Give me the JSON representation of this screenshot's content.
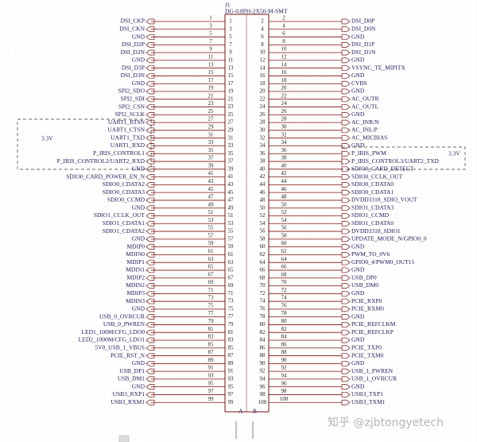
{
  "designator": "J1",
  "part": "DG-0.8PH-2X50-M-SMT",
  "left_net": "3.3V",
  "right_net": "3.3V",
  "unit_a": "A",
  "unit_b": "B",
  "watermark": "知乎 @zjbtongyetech",
  "rows": [
    {
      "left_pin": 1,
      "left": "DSI_CKP",
      "right_pin": 2,
      "right": "DSI_D0P"
    },
    {
      "left_pin": 3,
      "left": "DSI_CKN",
      "right_pin": 4,
      "right": "DSI_D0N"
    },
    {
      "left_pin": 5,
      "left": "GND",
      "right_pin": 6,
      "right": "GND"
    },
    {
      "left_pin": 7,
      "left": "DSI_D2P",
      "right_pin": 8,
      "right": "DSI_D1P"
    },
    {
      "left_pin": 9,
      "left": "DSI_D2N",
      "right_pin": 10,
      "right": "DSI_D1N"
    },
    {
      "left_pin": 11,
      "left": "GND",
      "right_pin": 12,
      "right": "GND"
    },
    {
      "left_pin": 13,
      "left": "DSI_D3P",
      "right_pin": 14,
      "right": "VSYNC_TE_MIPITX"
    },
    {
      "left_pin": 15,
      "left": "DSI_D3N",
      "right_pin": 16,
      "right": "GND"
    },
    {
      "left_pin": 17,
      "left": "GND",
      "right_pin": 18,
      "right": "CVBS"
    },
    {
      "left_pin": 19,
      "left": "SPI2_SDO",
      "right_pin": 20,
      "right": "GND"
    },
    {
      "left_pin": 21,
      "left": "SPI2_SDI",
      "right_pin": 22,
      "right": "AC_OUTR"
    },
    {
      "left_pin": 23,
      "left": "SPI2_CSN",
      "right_pin": 24,
      "right": "AC_OUTL"
    },
    {
      "left_pin": 25,
      "left": "SPI2_SCLK",
      "right_pin": 26,
      "right": "GND"
    },
    {
      "left_pin": 27,
      "left": "UART1_RTSN",
      "right_pin": 28,
      "right": "AC_INR/N"
    },
    {
      "left_pin": 29,
      "left": "UART1_CTSN",
      "right_pin": 30,
      "right": "AC_INL/P"
    },
    {
      "left_pin": 31,
      "left": "UART1_TXD",
      "right_pin": 32,
      "right": "AC_MICBIAS"
    },
    {
      "left_pin": 33,
      "left": "UART1_RXD",
      "right_pin": 34,
      "right": "GND"
    },
    {
      "left_pin": 35,
      "left": "P_IRIS_CONTROL1",
      "right_pin": 36,
      "right": "P_IRIS_PWM"
    },
    {
      "left_pin": 37,
      "left": "P_IRIS_CONTROL2/UART2_RXD",
      "right_pin": 38,
      "right": "P_IRIS_CONTROL3/UART2_TXD"
    },
    {
      "left_pin": 39,
      "left": "GND",
      "right_pin": 40,
      "right": "SDIO0_CARD_DETECT"
    },
    {
      "left_pin": 41,
      "left": "SDIO0_CARD_POWER_EN_N",
      "right_pin": 42,
      "right": "SDIO0_CCLK_OUT"
    },
    {
      "left_pin": 43,
      "left": "SDIO0_CDATA2",
      "right_pin": 44,
      "right": "SDIO0_CDATA0"
    },
    {
      "left_pin": 45,
      "left": "SDIO0_CDATA3",
      "right_pin": 46,
      "right": "SDIO0_CDATA1"
    },
    {
      "left_pin": 47,
      "left": "SDIO0_CCMD",
      "right_pin": 48,
      "right": "DVDD3318_SDIO_VOUT"
    },
    {
      "left_pin": 49,
      "left": "GND",
      "right_pin": 50,
      "right": "SDIO1_CDATA3"
    },
    {
      "left_pin": 51,
      "left": "SDIO1_CCLK_OUT",
      "right_pin": 52,
      "right": "SDIO1_CCMD"
    },
    {
      "left_pin": 53,
      "left": "SDIO1_CDATA1",
      "right_pin": 54,
      "right": "SDIO1_CDATA0"
    },
    {
      "left_pin": 55,
      "left": "SDIO1_CDATA2",
      "right_pin": 56,
      "right": "DVDD3318_SDIO1"
    },
    {
      "left_pin": 57,
      "left": "GND",
      "right_pin": 58,
      "right": "UPDATE_MODE_N/GPIO0_0"
    },
    {
      "left_pin": 59,
      "left": "MDIP0",
      "right_pin": 60,
      "right": "GND"
    },
    {
      "left_pin": 61,
      "left": "MDIN0",
      "right_pin": 62,
      "right": "PWM_TO_0V6"
    },
    {
      "left_pin": 63,
      "left": "MDIP1",
      "right_pin": 64,
      "right": "GPIO0_4/PWM0_OUT15"
    },
    {
      "left_pin": 65,
      "left": "MDIN1",
      "right_pin": 66,
      "right": "GND"
    },
    {
      "left_pin": 67,
      "left": "MDIP2",
      "right_pin": 68,
      "right": "USB_DP0"
    },
    {
      "left_pin": 69,
      "left": "MDIN2",
      "right_pin": 70,
      "right": "USB_DM0"
    },
    {
      "left_pin": 71,
      "left": "MDIP3",
      "right_pin": 72,
      "right": "GND"
    },
    {
      "left_pin": 73,
      "left": "MDIN3",
      "right_pin": 74,
      "right": "PCIE_RXP0"
    },
    {
      "left_pin": 75,
      "left": "GND",
      "right_pin": 76,
      "right": "PCIE_RXM0"
    },
    {
      "left_pin": 77,
      "left": "USB_0_OVRCUR",
      "right_pin": 78,
      "right": "GND"
    },
    {
      "left_pin": 79,
      "left": "USB_0_PWREN",
      "right_pin": 80,
      "right": "PCIE_REFCLKM"
    },
    {
      "left_pin": 81,
      "left": "LED1_100M/CFG_LDO0",
      "right_pin": 82,
      "right": "PCIE_REFCLKP"
    },
    {
      "left_pin": 83,
      "left": "LED2_1000M/CFG_LDO1",
      "right_pin": 84,
      "right": "GND"
    },
    {
      "left_pin": 85,
      "left": "5V0_USB_1_VBUS",
      "right_pin": 86,
      "right": "PCIE_TXP0"
    },
    {
      "left_pin": 87,
      "left": "PCIE_RST_N",
      "right_pin": 88,
      "right": "PCIE_TXM0"
    },
    {
      "left_pin": 89,
      "left": "GND",
      "right_pin": 90,
      "right": "GND"
    },
    {
      "left_pin": 91,
      "left": "USB_DP1",
      "right_pin": 92,
      "right": "USB_1_PWREN"
    },
    {
      "left_pin": 93,
      "left": "USB_DM1",
      "right_pin": 94,
      "right": "USB_1_OVRCUR"
    },
    {
      "left_pin": 95,
      "left": "GND",
      "right_pin": 96,
      "right": "GND"
    },
    {
      "left_pin": 97,
      "left": "USB3_RXP1",
      "right_pin": 98,
      "right": "USB3_TXP1"
    },
    {
      "left_pin": 99,
      "left": "USB3_RXM1",
      "right_pin": 100,
      "right": "USB3_TXM1"
    }
  ]
}
